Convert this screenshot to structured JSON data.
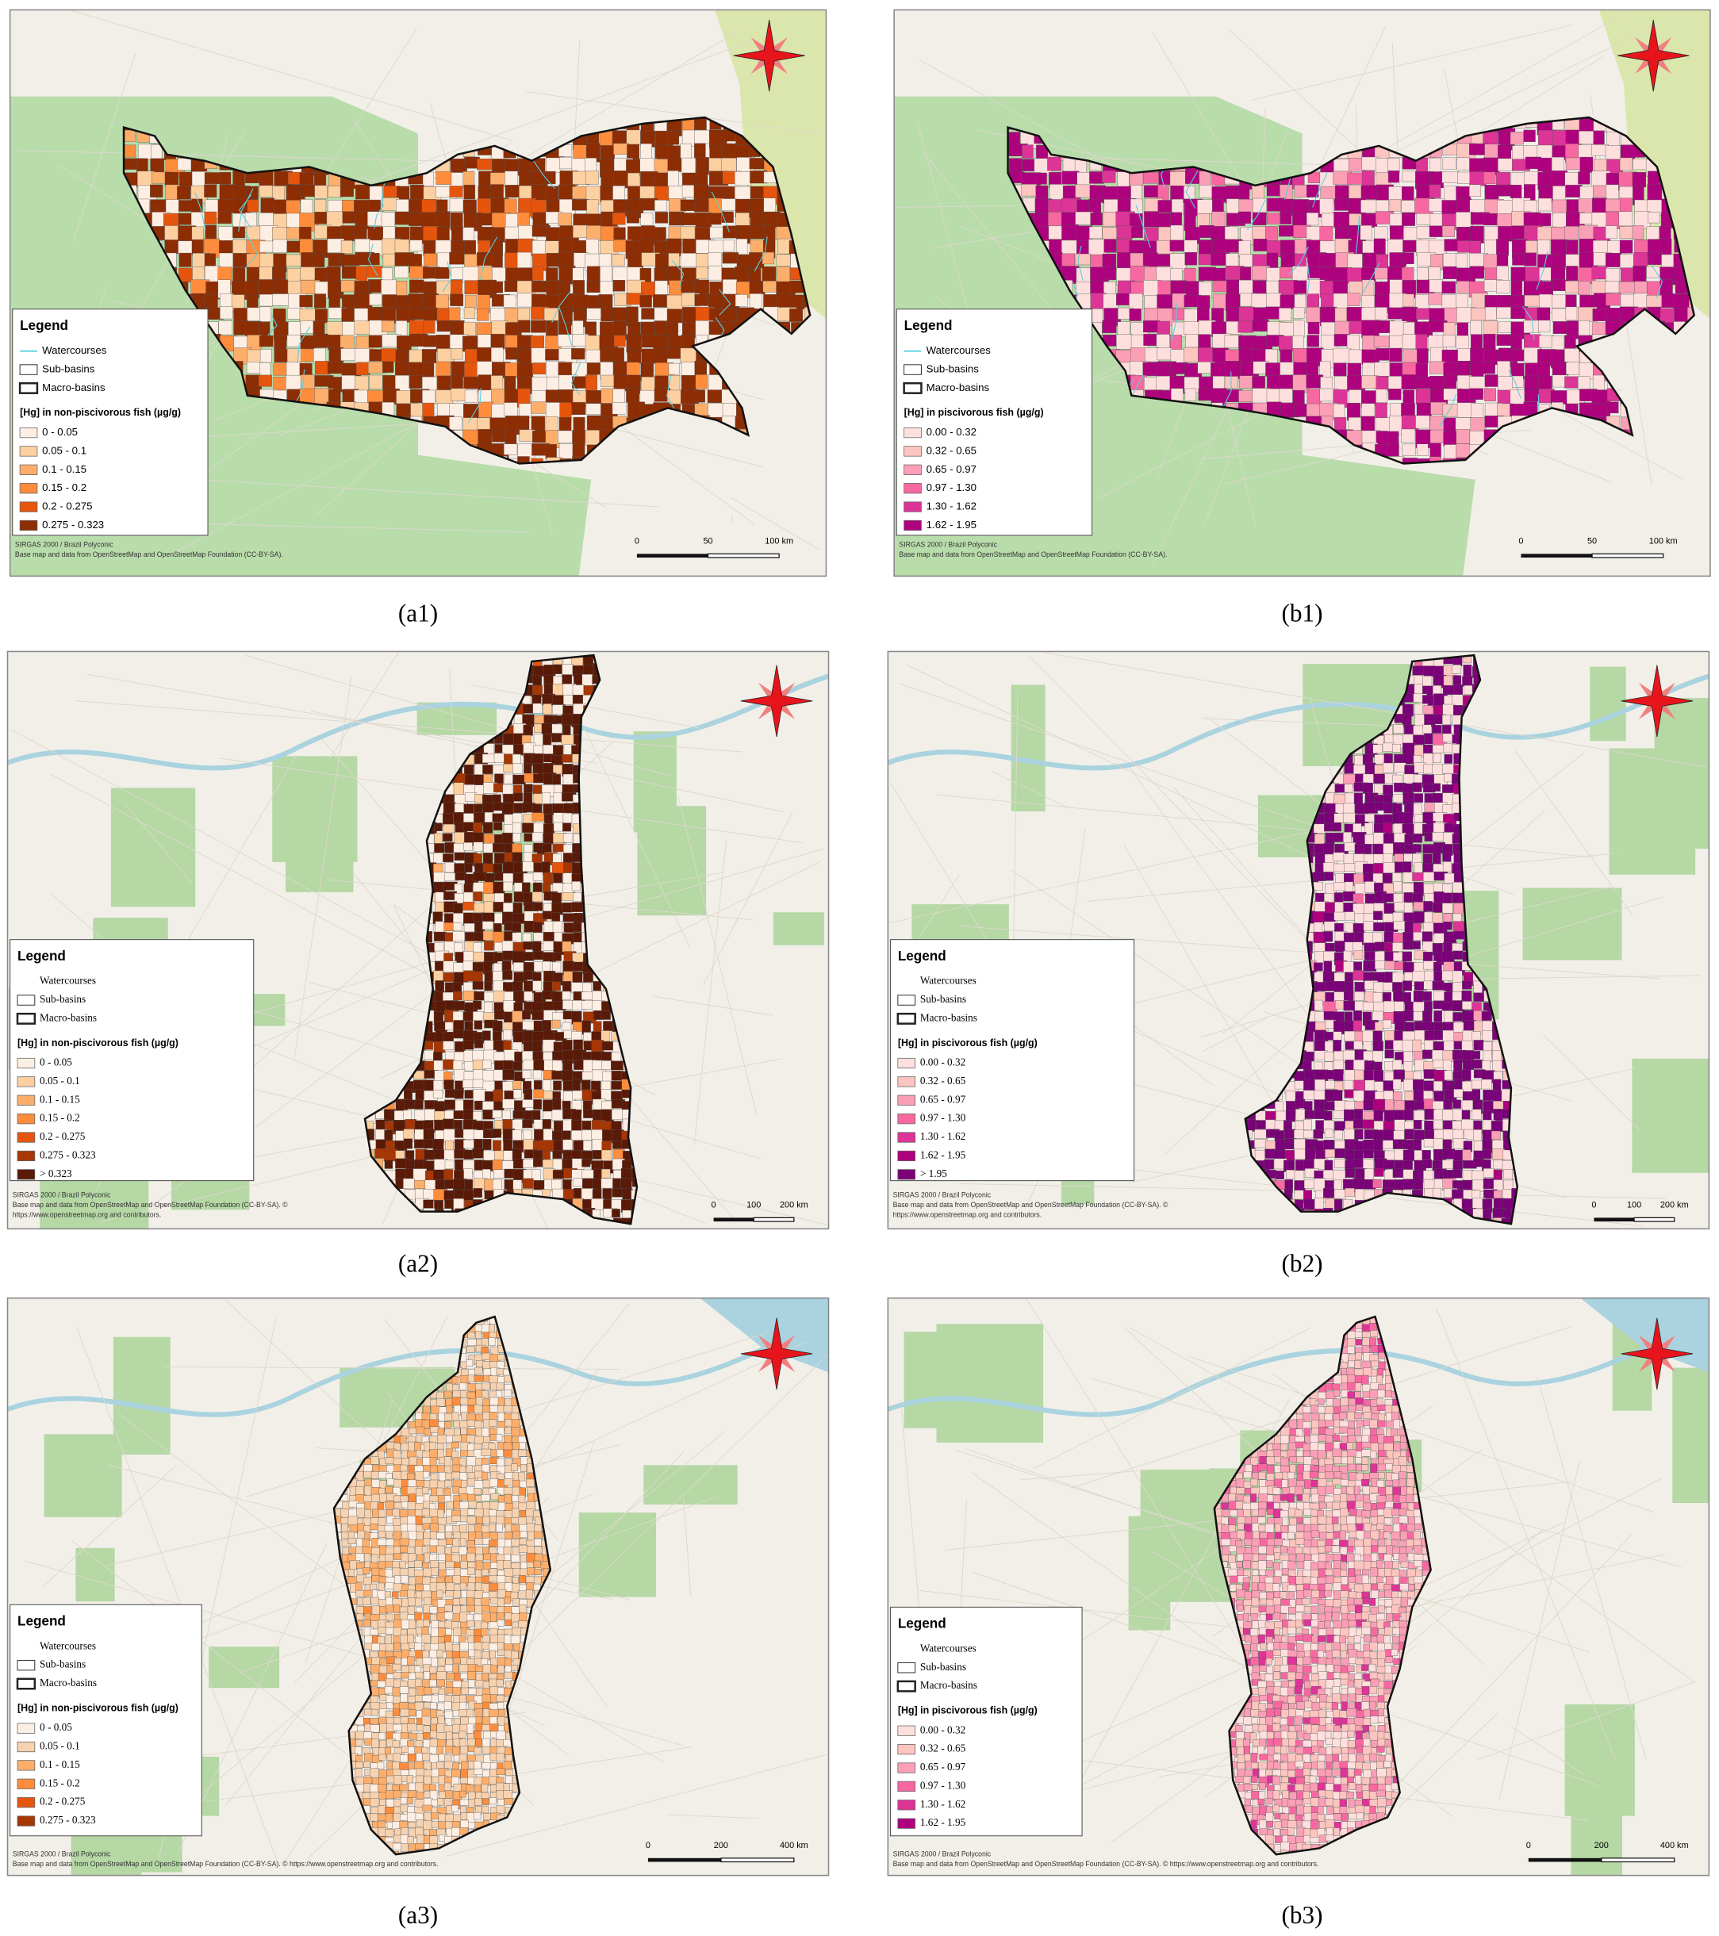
{
  "figure": {
    "panels": [
      {
        "label": "(a1)",
        "legend": {
          "title": "Legend",
          "layers": [
            "Watercourses",
            "Sub-basins",
            "Macro-basins"
          ],
          "class_title": "[Hg] in non-piscivorous fish (µg/g)",
          "classes": [
            {
              "label": "0 - 0.05",
              "color": "#fdeee3"
            },
            {
              "label": "0.05 - 0.1",
              "color": "#fdd0a2"
            },
            {
              "label": "0.1 - 0.15",
              "color": "#fdae6b"
            },
            {
              "label": "0.15 - 0.2",
              "color": "#fd8d3c"
            },
            {
              "label": "0.2 - 0.275",
              "color": "#e6550d"
            },
            {
              "label": "0.275 - 0.323",
              "color": "#8c2d04"
            }
          ]
        },
        "credits": [
          "SIRGAS 2000 / Brazil Polyconic",
          "Base map and data from OpenStreetMap and OpenStreetMap Foundation (CC-BY-SA)."
        ],
        "scale_labels": [
          "0",
          "50",
          "100 km"
        ]
      },
      {
        "label": "(b1)",
        "legend": {
          "title": "Legend",
          "layers": [
            "Watercourses",
            "Sub-basins",
            "Macro-basins"
          ],
          "class_title": "[Hg] in piscivorous fish (µg/g)",
          "classes": [
            {
              "label": "0.00 - 0.32",
              "color": "#fde0dd"
            },
            {
              "label": "0.32 - 0.65",
              "color": "#fcc5c0"
            },
            {
              "label": "0.65 - 0.97",
              "color": "#fa9fb5"
            },
            {
              "label": "0.97 - 1.30",
              "color": "#f768a1"
            },
            {
              "label": "1.30 - 1.62",
              "color": "#dd3497"
            },
            {
              "label": "1.62 - 1.95",
              "color": "#ae017e"
            }
          ]
        },
        "credits": [
          "SIRGAS 2000 / Brazil Polyconic",
          "Base map and data from OpenStreetMap and OpenStreetMap Foundation (CC-BY-SA)."
        ],
        "scale_labels": [
          "0",
          "50",
          "100 km"
        ]
      },
      {
        "label": "(a2)",
        "legend": {
          "title": "Legend",
          "layers": [
            "Watercourses",
            "Sub-basins",
            "Macro-basins"
          ],
          "class_title": "[Hg] in non-piscivorous fish (µg/g)",
          "classes": [
            {
              "label": "0 - 0.05",
              "color": "#fdeee3"
            },
            {
              "label": "0.05 - 0.1",
              "color": "#fdd0a2"
            },
            {
              "label": "0.1 - 0.15",
              "color": "#fdae6b"
            },
            {
              "label": "0.15 - 0.2",
              "color": "#fd8d3c"
            },
            {
              "label": "0.2 - 0.275",
              "color": "#e6550d"
            },
            {
              "label": "0.275 - 0.323",
              "color": "#a63603"
            },
            {
              "label": "> 0.323",
              "color": "#5a1a08"
            }
          ]
        },
        "credits": [
          "SIRGAS 2000 / Brazil Polyconic",
          "Base map and data from OpenStreetMap and OpenStreetMap Foundation (CC-BY-SA). ©",
          "https://www.openstreetmap.org and contributors."
        ],
        "scale_labels": [
          "0",
          "100",
          "200 km"
        ]
      },
      {
        "label": "(b2)",
        "legend": {
          "title": "Legend",
          "layers": [
            "Watercourses",
            "Sub-basins",
            "Macro-basins"
          ],
          "class_title": "[Hg] in piscivorous fish (µg/g)",
          "classes": [
            {
              "label": "0.00 - 0.32",
              "color": "#fde0dd"
            },
            {
              "label": "0.32 - 0.65",
              "color": "#fcc5c0"
            },
            {
              "label": "0.65 - 0.97",
              "color": "#fa9fb5"
            },
            {
              "label": "0.97 - 1.30",
              "color": "#f768a1"
            },
            {
              "label": "1.30 - 1.62",
              "color": "#dd3497"
            },
            {
              "label": "1.62 - 1.95",
              "color": "#ae017e"
            },
            {
              "label": "> 1.95",
              "color": "#7a0177"
            }
          ]
        },
        "credits": [
          "SIRGAS 2000 / Brazil Polyconic",
          "Base map and data from OpenStreetMap and OpenStreetMap Foundation (CC-BY-SA). ©",
          "https://www.openstreetmap.org and contributors."
        ],
        "scale_labels": [
          "0",
          "100",
          "200 km"
        ]
      },
      {
        "label": "(a3)",
        "legend": {
          "title": "Legend",
          "layers": [
            "Watercourses",
            "Sub-basins",
            "Macro-basins"
          ],
          "class_title": "[Hg] in non-piscivorous fish (µg/g)",
          "classes": [
            {
              "label": "0 - 0.05",
              "color": "#fdeee3"
            },
            {
              "label": "0.05 - 0.1",
              "color": "#f6d2b0"
            },
            {
              "label": "0.1 - 0.15",
              "color": "#fdae6b"
            },
            {
              "label": "0.15 - 0.2",
              "color": "#fd8d3c"
            },
            {
              "label": "0.2 - 0.275",
              "color": "#e6550d"
            },
            {
              "label": "0.275 - 0.323",
              "color": "#a63603"
            }
          ]
        },
        "credits": [
          "SIRGAS 2000 / Brazil Polyconic",
          "Base map and data from OpenStreetMap and OpenStreetMap Foundation (CC-BY-SA). © https://www.openstreetmap.org and contributors."
        ],
        "scale_labels": [
          "0",
          "200",
          "400 km"
        ]
      },
      {
        "label": "(b3)",
        "legend": {
          "title": "Legend",
          "layers": [
            "Watercourses",
            "Sub-basins",
            "Macro-basins"
          ],
          "class_title": "[Hg] in piscivorous fish (µg/g)",
          "classes": [
            {
              "label": "0.00 - 0.32",
              "color": "#fde0dd"
            },
            {
              "label": "0.32 - 0.65",
              "color": "#fcc5c0"
            },
            {
              "label": "0.65 - 0.97",
              "color": "#fa9fb5"
            },
            {
              "label": "0.97 - 1.30",
              "color": "#f768a1"
            },
            {
              "label": "1.30 - 1.62",
              "color": "#dd3497"
            },
            {
              "label": "1.62 - 1.95",
              "color": "#ae017e"
            }
          ]
        },
        "credits": [
          "SIRGAS 2000 / Brazil Polyconic",
          "Base map and data from OpenStreetMap and OpenStreetMap Foundation (CC-BY-SA). © https://www.openstreetmap.org and contributors."
        ],
        "scale_labels": [
          "0",
          "200",
          "400 km"
        ]
      }
    ]
  }
}
